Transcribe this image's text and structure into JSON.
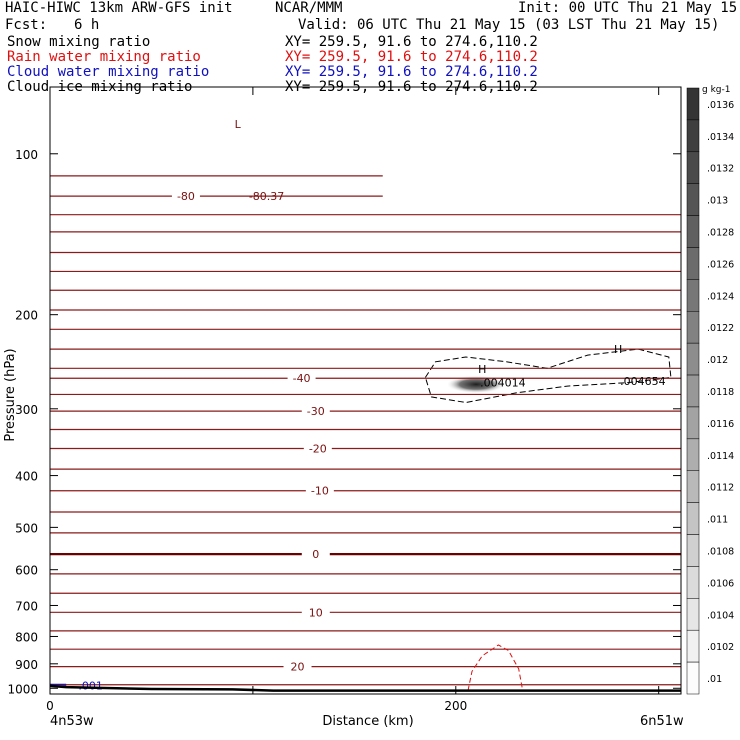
{
  "header": {
    "model": "HAIC-HIWC 13km ARW-GFS init",
    "org": "NCAR/MMM",
    "init": "Init: 00 UTC Thu 21 May 15",
    "fcst_label": "Fcst:",
    "fcst_value": "6 h",
    "valid": "Valid: 06 UTC Thu 21 May 15 (03 LST Thu 21 May 15)",
    "fields": [
      {
        "name": "Snow mixing ratio",
        "xy": "XY= 259.5, 91.6 to 274.6,110.2",
        "color": "#000000"
      },
      {
        "name": "Rain water mixing ratio",
        "xy": "XY= 259.5, 91.6 to 274.6,110.2",
        "color": "#e01010"
      },
      {
        "name": "Cloud water mixing ratio",
        "xy": "XY= 259.5, 91.6 to 274.6,110.2",
        "color": "#1010c0"
      },
      {
        "name": "Cloud ice mixing ratio",
        "xy": "XY= 259.5, 91.6 to 274.6,110.2",
        "color": "#000000"
      }
    ]
  },
  "chart_data": {
    "type": "cross-section",
    "xlabel": "Distance (km)",
    "ylabel": "Pressure (hPa)",
    "x_range": [
      0,
      311
    ],
    "y_range_hpa": [
      1025,
      75
    ],
    "x_ticks": [
      0,
      100,
      200,
      300
    ],
    "x_tick_labels": [
      "0",
      "",
      "200",
      ""
    ],
    "y_ticks": [
      100,
      200,
      300,
      400,
      500,
      600,
      700,
      800,
      900,
      1000
    ],
    "start_label": "4n53w",
    "end_label": "6n51w",
    "temperature_isotherms": [
      {
        "label": "-80",
        "p": 120,
        "x": 67
      },
      {
        "label": "-40",
        "p": 263,
        "x": 124
      },
      {
        "label": "-30",
        "p": 303,
        "x": 131
      },
      {
        "label": "-20",
        "p": 356,
        "x": 132
      },
      {
        "label": "-10",
        "p": 427,
        "x": 133
      },
      {
        "label": "0",
        "p": 561,
        "x": 131
      },
      {
        "label": "10",
        "p": 721,
        "x": 131
      },
      {
        "label": "20",
        "p": 911,
        "x": 122
      }
    ],
    "isotherm_pressures": [
      110,
      120,
      130,
      140,
      153,
      166,
      180,
      196,
      213,
      232,
      252,
      263,
      282,
      303,
      328,
      356,
      389,
      427,
      468,
      512,
      561,
      611,
      664,
      721,
      781,
      845,
      911,
      985
    ],
    "highlight_isotherm": 561,
    "annotations": [
      {
        "text": "L",
        "x": 91,
        "p": 88,
        "color": "#7a1010"
      },
      {
        "text": "-80.37",
        "x": 98,
        "p": 120,
        "color": "#7a1010"
      },
      {
        "text": "H",
        "x": 211,
        "p": 253,
        "color": "#000000"
      },
      {
        "text": ".004014",
        "x": 212,
        "p": 268,
        "color": "#000000"
      },
      {
        "text": "H",
        "x": 278,
        "p": 232,
        "color": "#000000"
      },
      {
        "text": ".004654",
        "x": 281,
        "p": 266,
        "color": "#000000"
      },
      {
        "text": ".001",
        "x": 14,
        "p": 989,
        "color": "#1010c0"
      }
    ],
    "snow_max": {
      "x": 214,
      "p": 270,
      "value": 0.004014
    },
    "colorbar": {
      "unit": "g kg-1",
      "labels": [
        ".0136",
        ".0134",
        ".0132",
        ".013",
        ".0128",
        ".0126",
        ".0124",
        ".0122",
        ".012",
        ".0118",
        ".0116",
        ".0114",
        ".0112",
        ".011",
        ".0108",
        ".0106",
        ".0104",
        ".0102",
        ".01"
      ]
    },
    "terrain": [
      [
        0,
        990
      ],
      [
        8,
        995
      ],
      [
        50,
        1003
      ],
      [
        90,
        1005
      ],
      [
        110,
        1010
      ],
      [
        311,
        1010
      ]
    ]
  }
}
